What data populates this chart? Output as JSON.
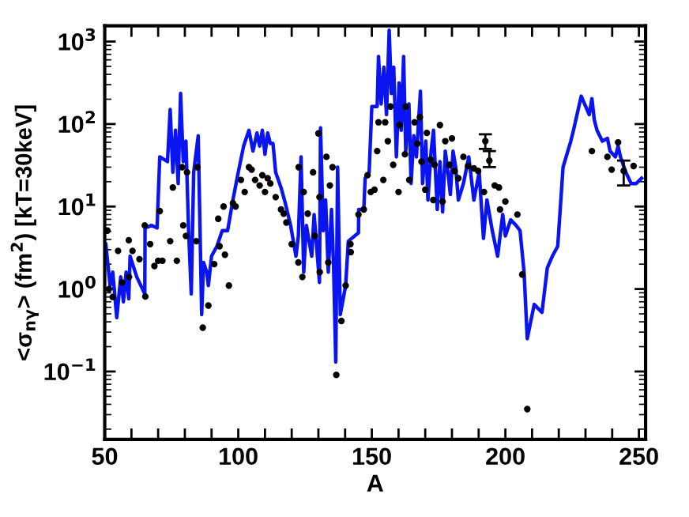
{
  "chart_data": {
    "type": "scatter",
    "xlabel": "A",
    "ylabel": "<σ$_{nγ}$> (fm$^{2}$) [kT=30keV]",
    "log": "y",
    "xlim": [
      50,
      252.5
    ],
    "ylim": [
      0.015,
      1550
    ],
    "xticks": [
      50,
      {
        "value": 60,
        "label": null
      },
      {
        "value": 70,
        "label": null
      },
      {
        "value": 80,
        "label": null
      },
      {
        "value": 90,
        "label": null
      },
      100,
      {
        "value": 110,
        "label": null
      },
      {
        "value": 120,
        "label": null
      },
      {
        "value": 130,
        "label": null
      },
      {
        "value": 140,
        "label": null
      },
      150,
      {
        "value": 160,
        "label": null
      },
      {
        "value": 170,
        "label": null
      },
      {
        "value": 180,
        "label": null
      },
      {
        "value": 190,
        "label": null
      },
      200,
      {
        "value": 210,
        "label": null
      },
      {
        "value": 220,
        "label": null
      },
      {
        "value": 230,
        "label": null
      },
      {
        "value": 240,
        "label": null
      },
      250
    ],
    "yticks": [
      {
        "value": 0.1,
        "label": "10$^{−1}$"
      },
      {
        "value": 1,
        "label": "10$^{0}$"
      },
      {
        "value": 10,
        "label": "10$^{1}$"
      },
      {
        "value": 100,
        "label": "10$^{2}$"
      },
      {
        "value": 1000,
        "label": "10$^{3}$"
      }
    ],
    "grid": false,
    "legend": false,
    "series": [
      {
        "type": "line",
        "color": "#0a14f0",
        "line_style": "solid",
        "marker": "none",
        "x": [
          50.4,
          52,
          53,
          54.5,
          56,
          57,
          58,
          59,
          59.5,
          62,
          65,
          65.1,
          67.6,
          69.6,
          70.6,
          73.5,
          74.5,
          75.5,
          76.5,
          77.5,
          78.4,
          79.4,
          80.4,
          81.4,
          82.4,
          83.3,
          85,
          86.3,
          87,
          88.2,
          88.8,
          90,
          92,
          94,
          96,
          98,
          100,
          102,
          104,
          105.5,
          107,
          108,
          109,
          110,
          111,
          112,
          113,
          114,
          116,
          117.6,
          119.6,
          121.6,
          122.5,
          123.5,
          124.5,
          125.5,
          127.5,
          128.4,
          130.4,
          130.8,
          131.8,
          132.7,
          133.7,
          134.9,
          135.7,
          136.5,
          137.2,
          138.2,
          140.2,
          141.2,
          145,
          145.1,
          147,
          147.5,
          149,
          150,
          152,
          152.5,
          153.5,
          154.5,
          155.5,
          156.5,
          157.3,
          158.2,
          159.2,
          160.2,
          161,
          161.9,
          162.7,
          163.9,
          164.7,
          165.7,
          166.7,
          168.2,
          169,
          170.2,
          171,
          172.2,
          173.1,
          174.5,
          175.5,
          176.5,
          177.5,
          178.5,
          179.4,
          180.4,
          181.4,
          182.4,
          184.3,
          186.3,
          188.2,
          190.2,
          191.8,
          193.1,
          195.1,
          197.1,
          199,
          200,
          202,
          204,
          205.5,
          207,
          208.2,
          210.8,
          213.7,
          215.7,
          217.6,
          219.6,
          221.6,
          224.5,
          225.5,
          228.4,
          231.4,
          232.4,
          233.3,
          234.3,
          236.3,
          238.2,
          239.2,
          241.2,
          242.2,
          243.1,
          245.1,
          247.1,
          249,
          251
        ],
        "values": [
          3.5,
          1.1,
          1.6,
          0.45,
          1.4,
          0.7,
          1.6,
          0.76,
          2.5,
          1.4,
          0.87,
          5.5,
          5.9,
          5.5,
          40,
          35,
          150,
          26,
          84,
          19,
          235,
          35,
          62,
          5.1,
          0.87,
          26,
          72,
          0.49,
          2.1,
          1.6,
          1.1,
          2.5,
          3.3,
          5.1,
          5.1,
          12,
          26,
          54,
          84,
          47,
          78,
          54,
          84,
          43,
          78,
          58,
          58,
          26,
          17,
          11,
          5.9,
          2.5,
          4.4,
          40,
          1.6,
          5.9,
          2.5,
          8,
          1.2,
          90,
          5.1,
          12,
          1.6,
          9.2,
          1.8,
          0.13,
          30,
          0.49,
          1.1,
          3.8,
          4.8,
          9.2,
          9.2,
          22,
          26,
          163,
          163,
          660,
          175,
          490,
          130,
          1370,
          235,
          490,
          40,
          315,
          84,
          660,
          47,
          175,
          19,
          72,
          40,
          250,
          19,
          62,
          12,
          47,
          84,
          9.2,
          35,
          8.6,
          47,
          26,
          14,
          47,
          30,
          12,
          19,
          40,
          12,
          26,
          4.1,
          12,
          5.1,
          2.5,
          8,
          4.4,
          6.9,
          5.9,
          5.1,
          1.6,
          0.25,
          0.65,
          0.52,
          1.8,
          2.5,
          3.3,
          30,
          62,
          84,
          218,
          130,
          203,
          112,
          84,
          62,
          67,
          47,
          40,
          54,
          40,
          26,
          19,
          19,
          22
        ]
      },
      {
        "color": "#000000",
        "marker": "circle",
        "x": [
          51,
          51.6,
          53,
          55,
          56.5,
          59,
          60.4,
          59.1,
          63,
          65,
          65.2,
          67,
          68.6,
          70,
          70.6,
          71.6,
          74.5,
          77,
          75.5,
          79.4,
          79,
          80.4,
          80.8,
          84.7,
          84.3,
          86.7,
          88.8,
          91,
          92.5,
          93,
          94.5,
          95,
          96.5,
          98,
          99,
          101,
          102.4,
          104,
          105,
          106.3,
          108,
          109,
          110,
          111,
          112,
          114,
          116,
          117,
          118,
          120,
          122.5,
          122.6,
          124,
          124.5,
          126,
          128,
          128.6,
          130,
          130.4,
          130.5,
          133,
          133.7,
          134.3,
          135.3,
          136.7,
          138.6,
          140.2,
          142,
          142.1,
          145,
          147,
          148.4,
          149.6,
          151,
          152,
          154.3,
          152.5,
          155,
          156,
          157,
          158,
          160,
          160.4,
          162.4,
          162.7,
          164,
          166,
          167,
          168,
          168.6,
          170,
          170.6,
          172,
          173,
          173.5,
          175.5,
          176.5,
          177.5,
          179,
          180,
          181,
          182.4,
          184.3,
          186,
          188.2,
          189.8,
          192,
          192.5,
          194,
          196,
          197.6,
          198,
          200,
          204.5,
          206.3,
          208.2,
          232.4,
          238.2,
          239.8,
          242.2,
          244.3,
          248
        ],
        "values": [
          5.1,
          1,
          0.8,
          2.9,
          1.2,
          3.9,
          2.9,
          1.4,
          2.3,
          5.9,
          0.81,
          3.5,
          1.9,
          2.2,
          8.8,
          2.2,
          3.8,
          2.2,
          17,
          5.9,
          30,
          4.4,
          26,
          30,
          3.8,
          0.34,
          0.63,
          2,
          7.1,
          3.3,
          10,
          2.6,
          1.1,
          11,
          10,
          21,
          15,
          30,
          28,
          21,
          18,
          24,
          15,
          22,
          19,
          13,
          9.2,
          8.2,
          6.4,
          3.5,
          2.1,
          30,
          1.4,
          15,
          8.2,
          26,
          4.4,
          77,
          13,
          1.6,
          40,
          2.1,
          18,
          30,
          0.091,
          0.41,
          1.1,
          3.5,
          2.8,
          8,
          9.2,
          24,
          15,
          16,
          47,
          21,
          105,
          105,
          62,
          163,
          32,
          15,
          97,
          43,
          163,
          21,
          105,
          58,
          121,
          35,
          16,
          78,
          37,
          12,
          32,
          97,
          11.5,
          62,
          32,
          67,
          27,
          22,
          40,
          31,
          29,
          27,
          15,
          62,
          36,
          18,
          17,
          9.2,
          11.5,
          8,
          1.5,
          0.035,
          47,
          40,
          28,
          60,
          27,
          31
        ],
        "errors": [
          null,
          null,
          null,
          null,
          null,
          null,
          null,
          null,
          null,
          null,
          null,
          null,
          null,
          null,
          null,
          null,
          null,
          null,
          null,
          null,
          null,
          null,
          null,
          null,
          null,
          null,
          null,
          null,
          null,
          null,
          null,
          null,
          null,
          null,
          null,
          null,
          null,
          null,
          null,
          null,
          null,
          null,
          null,
          null,
          null,
          null,
          null,
          null,
          null,
          null,
          null,
          null,
          null,
          null,
          null,
          null,
          null,
          null,
          null,
          null,
          null,
          null,
          null,
          null,
          null,
          null,
          null,
          null,
          null,
          null,
          null,
          null,
          null,
          null,
          null,
          null,
          null,
          null,
          null,
          null,
          null,
          null,
          null,
          null,
          null,
          null,
          null,
          null,
          null,
          null,
          null,
          null,
          null,
          null,
          null,
          null,
          null,
          null,
          null,
          null,
          null,
          null,
          null,
          null,
          null,
          null,
          null,
          [
            50,
            75
          ],
          [
            30,
            47
          ],
          null,
          null,
          null,
          null,
          null,
          null,
          null,
          null,
          null,
          null,
          null,
          [
            18,
            36
          ],
          null
        ]
      }
    ]
  }
}
